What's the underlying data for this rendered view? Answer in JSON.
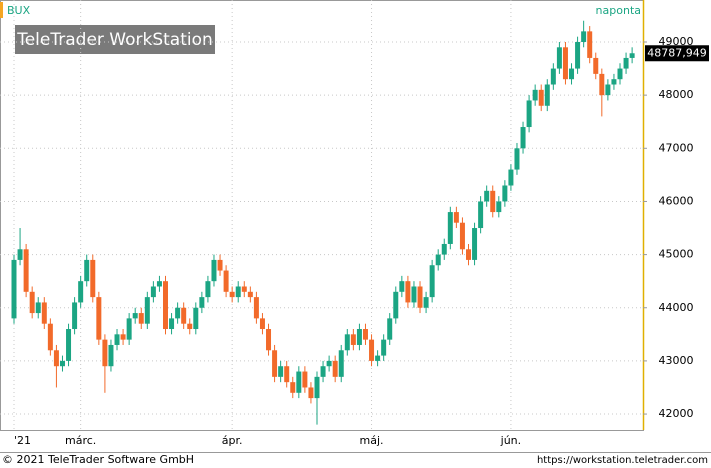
{
  "chart_data": {
    "type": "candlestick",
    "symbol": "BUX",
    "interval": "naponta",
    "watermark": "TeleTrader WorkStation",
    "footer_left": "© 2021 TeleTrader Software GmbH",
    "footer_right": "https://workstation.teletrader.com",
    "up_color": "#1ba583",
    "down_color": "#f26a2a",
    "grid": true,
    "categories": [
      "'21",
      null,
      null,
      null,
      null,
      null,
      null,
      null,
      null,
      null,
      null,
      "márc.",
      null,
      null,
      null,
      null,
      null,
      null,
      null,
      null,
      null,
      null,
      null,
      null,
      null,
      null,
      null,
      null,
      null,
      null,
      null,
      null,
      null,
      null,
      null,
      null,
      "ápr.",
      null,
      null,
      null,
      null,
      null,
      null,
      null,
      null,
      null,
      null,
      null,
      null,
      null,
      null,
      null,
      null,
      null,
      null,
      null,
      null,
      null,
      null,
      "máj.",
      null,
      null,
      null,
      null,
      null,
      null,
      null,
      null,
      null,
      null,
      null,
      null,
      null,
      null,
      null,
      null,
      null,
      null,
      null,
      null,
      null,
      null,
      "jún.",
      null,
      null,
      null,
      null,
      null,
      null,
      null,
      null,
      null,
      null,
      null,
      null,
      null,
      null,
      null,
      null,
      null,
      null,
      null,
      null
    ],
    "open": [
      43800,
      44900,
      45100,
      44300,
      43900,
      44100,
      43700,
      43200,
      42900,
      43000,
      43600,
      44100,
      44500,
      44900,
      44200,
      43400,
      42900,
      43300,
      43500,
      43400,
      43800,
      43900,
      43700,
      44200,
      44400,
      44500,
      43600,
      43800,
      44000,
      43700,
      43600,
      44000,
      44200,
      44500,
      44900,
      44700,
      44300,
      44200,
      44400,
      44300,
      44200,
      43800,
      43600,
      43200,
      42700,
      42900,
      42600,
      42400,
      42800,
      42500,
      42300,
      42700,
      42900,
      43000,
      42700,
      43200,
      43500,
      43300,
      43600,
      43400,
      43000,
      43100,
      43400,
      43800,
      44300,
      44500,
      44100,
      44400,
      44000,
      44200,
      44800,
      45000,
      45200,
      45800,
      45600,
      45100,
      44900,
      45500,
      46000,
      46200,
      45800,
      46000,
      46300,
      46600,
      47000,
      47400,
      47900,
      48100,
      47800,
      48200,
      48500,
      48900,
      48300,
      48500,
      49000,
      49200,
      48700,
      48400,
      48000,
      48200,
      48300,
      48500,
      48700
    ],
    "high": [
      45000,
      45500,
      45200,
      44400,
      44200,
      44200,
      43800,
      43300,
      43100,
      43700,
      44200,
      44600,
      45000,
      45000,
      44300,
      43500,
      43400,
      43600,
      43600,
      43900,
      44000,
      44000,
      44300,
      44500,
      44600,
      44600,
      43900,
      44100,
      44100,
      43800,
      44100,
      44300,
      44600,
      45000,
      45000,
      44800,
      44400,
      44500,
      44500,
      44400,
      44300,
      43900,
      43700,
      43300,
      43000,
      43000,
      42700,
      42900,
      42900,
      42600,
      42800,
      43000,
      43100,
      43100,
      43300,
      43600,
      43600,
      43700,
      43700,
      43500,
      43200,
      43500,
      43900,
      44400,
      44600,
      44600,
      44500,
      44500,
      44300,
      44900,
      45100,
      45300,
      45900,
      45900,
      45700,
      45200,
      45600,
      46100,
      46300,
      46300,
      46100,
      46400,
      46700,
      47100,
      47500,
      48000,
      48200,
      48200,
      48300,
      48600,
      49000,
      49000,
      48600,
      49100,
      49400,
      49300,
      48800,
      48500,
      48300,
      48400,
      48600,
      48800,
      48900
    ],
    "low": [
      43700,
      44800,
      44200,
      43800,
      43800,
      43600,
      43100,
      42500,
      42800,
      42900,
      43500,
      44000,
      44400,
      44100,
      43300,
      42400,
      42800,
      43200,
      43300,
      43300,
      43700,
      43600,
      43600,
      44100,
      44300,
      43500,
      43500,
      43700,
      43600,
      43500,
      43500,
      43900,
      44100,
      44400,
      44600,
      44200,
      44100,
      44100,
      44200,
      44100,
      43700,
      43500,
      43100,
      42600,
      42600,
      42500,
      42300,
      42300,
      42400,
      42200,
      41800,
      42600,
      42800,
      42600,
      42600,
      43100,
      43200,
      43200,
      43300,
      42900,
      42900,
      43000,
      43300,
      43700,
      44200,
      44000,
      44000,
      43900,
      43900,
      44100,
      44700,
      44900,
      45100,
      45500,
      45000,
      44800,
      44800,
      45400,
      45900,
      45700,
      45700,
      45900,
      46200,
      46500,
      46900,
      47300,
      47800,
      47700,
      47700,
      48100,
      48400,
      48200,
      48200,
      48400,
      48900,
      48600,
      48300,
      47600,
      47900,
      48100,
      48200,
      48400,
      48600
    ],
    "close": [
      44900,
      45100,
      44300,
      43900,
      44100,
      43700,
      43200,
      42900,
      43000,
      43600,
      44100,
      44500,
      44900,
      44200,
      43400,
      42900,
      43300,
      43500,
      43400,
      43800,
      43900,
      43700,
      44200,
      44400,
      44500,
      43600,
      43800,
      44000,
      43700,
      43600,
      44000,
      44200,
      44500,
      44900,
      44700,
      44300,
      44200,
      44400,
      44300,
      44200,
      43800,
      43600,
      43200,
      42700,
      42900,
      42600,
      42400,
      42800,
      42500,
      42300,
      42700,
      42900,
      43000,
      42700,
      43200,
      43500,
      43300,
      43600,
      43400,
      43000,
      43100,
      43400,
      43800,
      44300,
      44500,
      44100,
      44400,
      44000,
      44200,
      44800,
      45000,
      45200,
      45800,
      45600,
      45100,
      44900,
      45500,
      46000,
      46200,
      45800,
      46000,
      46300,
      46600,
      47000,
      47400,
      47900,
      48100,
      47800,
      48200,
      48500,
      48900,
      48300,
      48500,
      49000,
      49200,
      48700,
      48400,
      48000,
      48200,
      48300,
      48500,
      48700,
      48787.949
    ],
    "last_price": {
      "value": 48787.949,
      "label": "48787,949"
    },
    "ylim": [
      41700,
      49790
    ],
    "yticks": [
      42000,
      43000,
      44000,
      45000,
      46000,
      47000,
      48000,
      49000
    ]
  }
}
